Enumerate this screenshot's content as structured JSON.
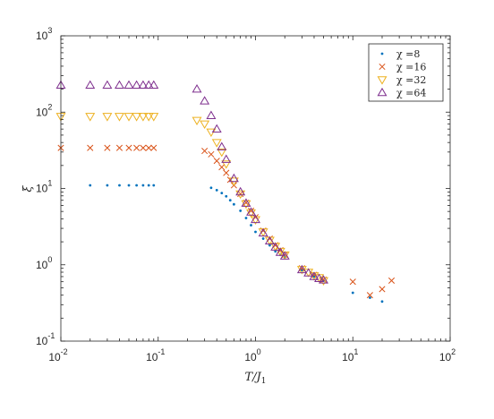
{
  "chart_data": {
    "type": "scatter",
    "x_scale": "log",
    "y_scale": "log",
    "xlim": [
      0.01,
      100
    ],
    "ylim": [
      0.1,
      1000
    ],
    "xlabel": "T/J1",
    "ylabel": "ξ",
    "x_ticks": [
      {
        "value": 0.01,
        "base": "10",
        "exp": "-2"
      },
      {
        "value": 0.1,
        "base": "10",
        "exp": "-1"
      },
      {
        "value": 1,
        "base": "10",
        "exp": "0"
      },
      {
        "value": 10,
        "base": "10",
        "exp": "1"
      },
      {
        "value": 100,
        "base": "10",
        "exp": "2"
      }
    ],
    "y_ticks": [
      {
        "value": 0.1,
        "base": "10",
        "exp": "-1"
      },
      {
        "value": 1,
        "base": "10",
        "exp": "0"
      },
      {
        "value": 10,
        "base": "10",
        "exp": "1"
      },
      {
        "value": 100,
        "base": "10",
        "exp": "2"
      },
      {
        "value": 1000,
        "base": "10",
        "exp": "3"
      }
    ],
    "grid": false,
    "legend_position": "top-right",
    "series": [
      {
        "name": "χ =8",
        "marker": "dot",
        "color": "#0072BD",
        "points": [
          [
            0.02,
            11
          ],
          [
            0.03,
            11
          ],
          [
            0.04,
            11
          ],
          [
            0.05,
            11
          ],
          [
            0.06,
            11
          ],
          [
            0.07,
            11
          ],
          [
            0.08,
            11
          ],
          [
            0.09,
            11
          ],
          [
            0.35,
            10.2
          ],
          [
            0.4,
            9.5
          ],
          [
            0.45,
            8.7
          ],
          [
            0.5,
            7.9
          ],
          [
            0.55,
            7.0
          ],
          [
            0.6,
            6.2
          ],
          [
            0.7,
            5.1
          ],
          [
            0.8,
            4.1
          ],
          [
            0.9,
            3.3
          ],
          [
            1.0,
            2.7
          ],
          [
            1.2,
            2.2
          ],
          [
            1.4,
            1.8
          ],
          [
            1.6,
            1.5
          ],
          [
            1.8,
            1.35
          ],
          [
            2.0,
            1.25
          ],
          [
            3.0,
            0.85
          ],
          [
            4.0,
            0.7
          ],
          [
            5.0,
            0.62
          ],
          [
            10,
            0.43
          ],
          [
            15,
            0.37
          ],
          [
            20,
            0.33
          ]
        ]
      },
      {
        "name": "χ =16",
        "marker": "x",
        "color": "#D95319",
        "points": [
          [
            0.01,
            34
          ],
          [
            0.02,
            34
          ],
          [
            0.03,
            34
          ],
          [
            0.04,
            34
          ],
          [
            0.05,
            34
          ],
          [
            0.06,
            34
          ],
          [
            0.07,
            34
          ],
          [
            0.08,
            34
          ],
          [
            0.09,
            34
          ],
          [
            0.3,
            31
          ],
          [
            0.35,
            28
          ],
          [
            0.4,
            23
          ],
          [
            0.45,
            19
          ],
          [
            0.5,
            16
          ],
          [
            0.55,
            13
          ],
          [
            0.6,
            11
          ],
          [
            0.7,
            8.5
          ],
          [
            0.8,
            6.5
          ],
          [
            0.9,
            5.1
          ],
          [
            1.0,
            4.2
          ],
          [
            1.2,
            2.8
          ],
          [
            1.4,
            2.2
          ],
          [
            1.6,
            1.8
          ],
          [
            1.8,
            1.55
          ],
          [
            2.0,
            1.35
          ],
          [
            3.0,
            0.9
          ],
          [
            4.0,
            0.74
          ],
          [
            5.0,
            0.64
          ],
          [
            10,
            0.6
          ],
          [
            15,
            0.4
          ],
          [
            20,
            0.48
          ],
          [
            25,
            0.62
          ]
        ]
      },
      {
        "name": "χ =32",
        "marker": "triangle-down",
        "color": "#EDB120",
        "points": [
          [
            0.01,
            88
          ],
          [
            0.02,
            88
          ],
          [
            0.03,
            88
          ],
          [
            0.04,
            88
          ],
          [
            0.05,
            88
          ],
          [
            0.06,
            88
          ],
          [
            0.07,
            88
          ],
          [
            0.08,
            88
          ],
          [
            0.09,
            88
          ],
          [
            0.25,
            78
          ],
          [
            0.3,
            70
          ],
          [
            0.35,
            55
          ],
          [
            0.4,
            40
          ],
          [
            0.45,
            30
          ],
          [
            0.5,
            21
          ],
          [
            0.6,
            12.5
          ],
          [
            0.7,
            8.5
          ],
          [
            0.8,
            6.3
          ],
          [
            0.9,
            4.8
          ],
          [
            1.0,
            3.9
          ],
          [
            1.2,
            2.7
          ],
          [
            1.4,
            2.1
          ],
          [
            1.6,
            1.75
          ],
          [
            1.8,
            1.5
          ],
          [
            2.0,
            1.35
          ],
          [
            3.0,
            0.87
          ],
          [
            3.5,
            0.8
          ],
          [
            4.0,
            0.72
          ],
          [
            4.5,
            0.68
          ],
          [
            5.0,
            0.62
          ]
        ]
      },
      {
        "name": "χ =64",
        "marker": "triangle-up",
        "color": "#7E2F8E",
        "points": [
          [
            0.01,
            225
          ],
          [
            0.02,
            225
          ],
          [
            0.03,
            225
          ],
          [
            0.04,
            225
          ],
          [
            0.05,
            225
          ],
          [
            0.06,
            225
          ],
          [
            0.07,
            225
          ],
          [
            0.08,
            225
          ],
          [
            0.09,
            225
          ],
          [
            0.25,
            200
          ],
          [
            0.3,
            140
          ],
          [
            0.35,
            90
          ],
          [
            0.4,
            60
          ],
          [
            0.45,
            35
          ],
          [
            0.5,
            24
          ],
          [
            0.6,
            13.5
          ],
          [
            0.7,
            9
          ],
          [
            0.8,
            6.4
          ],
          [
            0.9,
            4.9
          ],
          [
            1.0,
            3.9
          ],
          [
            1.2,
            2.6
          ],
          [
            1.4,
            2.05
          ],
          [
            1.6,
            1.7
          ],
          [
            1.8,
            1.45
          ],
          [
            2.0,
            1.3
          ],
          [
            3.0,
            0.86
          ],
          [
            3.5,
            0.78
          ],
          [
            4.0,
            0.7
          ],
          [
            4.5,
            0.66
          ],
          [
            5.0,
            0.63
          ]
        ]
      }
    ]
  }
}
